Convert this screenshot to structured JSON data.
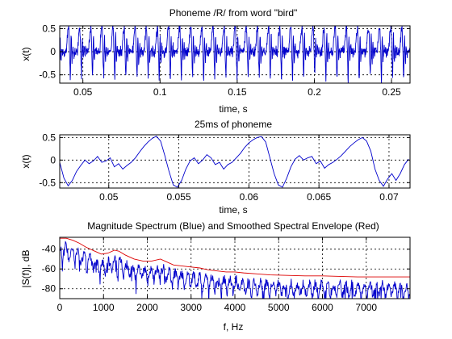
{
  "colors": {
    "signal": "#0000cc",
    "envelope": "#dd0000",
    "axes": "#000000",
    "grid": "#000000",
    "background": "#ffffff"
  },
  "chart_data": [
    {
      "type": "line",
      "title": "Phoneme /R/ from word \"bird\"",
      "xlabel": "time, s",
      "ylabel": "x(t)",
      "xlim": [
        0.035,
        0.262
      ],
      "ylim": [
        -0.68,
        0.56
      ],
      "xticks": [
        0.05,
        0.1,
        0.15,
        0.2,
        0.25
      ],
      "xtick_labels": [
        "0.05",
        "0.1",
        "0.15",
        "0.2",
        "0.25"
      ],
      "yticks": [
        -0.5,
        0,
        0.5
      ],
      "ytick_labels": [
        "-0.5",
        "0",
        "0.5"
      ],
      "grid": true,
      "series": [
        {
          "description_free": true,
          "x_start": 0.035,
          "x_end": 0.262,
          "pitch_period_s": 0.0072,
          "peak_amplitude": 0.55,
          "trough_amplitude": -0.62,
          "samples": 1400
        }
      ]
    },
    {
      "type": "line",
      "title": "25ms of phoneme",
      "xlabel": "time, s",
      "ylabel": "x(t)",
      "xlim": [
        0.0465,
        0.0715
      ],
      "ylim": [
        -0.62,
        0.56
      ],
      "xticks": [
        0.05,
        0.055,
        0.06,
        0.065,
        0.07
      ],
      "xtick_labels": [
        "0.05",
        "0.055",
        "0.06",
        "0.065",
        "0.07"
      ],
      "yticks": [
        -0.5,
        0,
        0.5
      ],
      "ytick_labels": [
        "-0.5",
        "0",
        "0.5"
      ],
      "grid": true,
      "series": [
        {
          "points": [
            [
              0.0465,
              -0.05
            ],
            [
              0.0468,
              -0.4
            ],
            [
              0.0471,
              -0.57
            ],
            [
              0.0474,
              -0.45
            ],
            [
              0.0477,
              -0.25
            ],
            [
              0.048,
              -0.12
            ],
            [
              0.0483,
              0.0
            ],
            [
              0.0486,
              -0.08
            ],
            [
              0.0489,
              -0.02
            ],
            [
              0.0492,
              0.08
            ],
            [
              0.0495,
              -0.05
            ],
            [
              0.0498,
              -0.02
            ],
            [
              0.0501,
              0.05
            ],
            [
              0.0504,
              -0.15
            ],
            [
              0.0507,
              -0.08
            ],
            [
              0.051,
              -0.2
            ],
            [
              0.0513,
              -0.12
            ],
            [
              0.0516,
              -0.05
            ],
            [
              0.0519,
              0.05
            ],
            [
              0.0522,
              0.18
            ],
            [
              0.0525,
              0.3
            ],
            [
              0.0528,
              0.4
            ],
            [
              0.0531,
              0.48
            ],
            [
              0.0534,
              0.53
            ],
            [
              0.0537,
              0.42
            ],
            [
              0.054,
              0.1
            ],
            [
              0.0543,
              -0.25
            ],
            [
              0.0546,
              -0.55
            ],
            [
              0.0549,
              -0.6
            ],
            [
              0.0552,
              -0.45
            ],
            [
              0.0555,
              -0.2
            ],
            [
              0.0558,
              -0.02
            ],
            [
              0.0561,
              0.05
            ],
            [
              0.0564,
              -0.08
            ],
            [
              0.0567,
              0.0
            ],
            [
              0.057,
              0.12
            ],
            [
              0.0573,
              0.05
            ],
            [
              0.0576,
              -0.1
            ],
            [
              0.0579,
              -0.05
            ],
            [
              0.0582,
              -0.2
            ],
            [
              0.0585,
              -0.1
            ],
            [
              0.0588,
              -0.05
            ],
            [
              0.0591,
              0.05
            ],
            [
              0.0594,
              0.15
            ],
            [
              0.0597,
              0.28
            ],
            [
              0.06,
              0.38
            ],
            [
              0.0603,
              0.45
            ],
            [
              0.0606,
              0.5
            ],
            [
              0.0609,
              0.52
            ],
            [
              0.0612,
              0.4
            ],
            [
              0.0615,
              0.05
            ],
            [
              0.0618,
              -0.3
            ],
            [
              0.0621,
              -0.55
            ],
            [
              0.0624,
              -0.6
            ],
            [
              0.0627,
              -0.4
            ],
            [
              0.063,
              -0.15
            ],
            [
              0.0633,
              0.02
            ],
            [
              0.0636,
              0.1
            ],
            [
              0.0639,
              0.0
            ],
            [
              0.0642,
              0.05
            ],
            [
              0.0645,
              0.08
            ],
            [
              0.0648,
              -0.08
            ],
            [
              0.0651,
              -0.02
            ],
            [
              0.0654,
              -0.18
            ],
            [
              0.0657,
              -0.1
            ],
            [
              0.066,
              -0.05
            ],
            [
              0.0663,
              0.02
            ],
            [
              0.0666,
              0.1
            ],
            [
              0.0669,
              0.2
            ],
            [
              0.0672,
              0.3
            ],
            [
              0.0675,
              0.38
            ],
            [
              0.0678,
              0.45
            ],
            [
              0.0681,
              0.5
            ],
            [
              0.0684,
              0.42
            ],
            [
              0.0687,
              0.2
            ],
            [
              0.069,
              -0.2
            ],
            [
              0.0693,
              -0.45
            ],
            [
              0.0696,
              -0.58
            ],
            [
              0.0699,
              -0.42
            ],
            [
              0.0702,
              -0.3
            ],
            [
              0.0705,
              -0.45
            ],
            [
              0.0708,
              -0.3
            ],
            [
              0.0711,
              -0.1
            ],
            [
              0.0714,
              0.02
            ]
          ]
        }
      ]
    },
    {
      "type": "line",
      "title": "Magnitude Spectrum (Blue) and Smoothed Spectral Envelope (Red)",
      "xlabel": "f, Hz",
      "ylabel": "|S(f)|, dB",
      "xlim": [
        0,
        8000
      ],
      "ylim": [
        -90,
        -28
      ],
      "xticks": [
        0,
        1000,
        2000,
        3000,
        4000,
        5000,
        6000,
        7000
      ],
      "xtick_labels": [
        "0",
        "1000",
        "2000",
        "3000",
        "4000",
        "5000",
        "6000",
        "7000"
      ],
      "yticks": [
        -80,
        -60,
        -40
      ],
      "ytick_labels": [
        "-80",
        "-60",
        "-40"
      ],
      "grid": true,
      "series": [
        {
          "name": "Magnitude Spectrum",
          "color_key": "signal",
          "points_count": 800
        },
        {
          "name": "Smoothed Spectral Envelope",
          "color_key": "envelope",
          "points": [
            [
              0,
              -29
            ],
            [
              150,
              -29
            ],
            [
              300,
              -31
            ],
            [
              450,
              -34
            ],
            [
              600,
              -38
            ],
            [
              800,
              -42
            ],
            [
              950,
              -45
            ],
            [
              1100,
              -44
            ],
            [
              1250,
              -41
            ],
            [
              1350,
              -42
            ],
            [
              1500,
              -46
            ],
            [
              1700,
              -50
            ],
            [
              1900,
              -52
            ],
            [
              2100,
              -52
            ],
            [
              2300,
              -50
            ],
            [
              2400,
              -52
            ],
            [
              2600,
              -56
            ],
            [
              2800,
              -57
            ],
            [
              3000,
              -58
            ],
            [
              3200,
              -59
            ],
            [
              3400,
              -61
            ],
            [
              3600,
              -62
            ],
            [
              3800,
              -63
            ],
            [
              4000,
              -63
            ],
            [
              4200,
              -64
            ],
            [
              4500,
              -65
            ],
            [
              4800,
              -66
            ],
            [
              5200,
              -66.5
            ],
            [
              5600,
              -67
            ],
            [
              6000,
              -67
            ],
            [
              6400,
              -67.5
            ],
            [
              6800,
              -68
            ],
            [
              7200,
              -68
            ],
            [
              7600,
              -68
            ],
            [
              8000,
              -68
            ]
          ]
        }
      ]
    }
  ]
}
